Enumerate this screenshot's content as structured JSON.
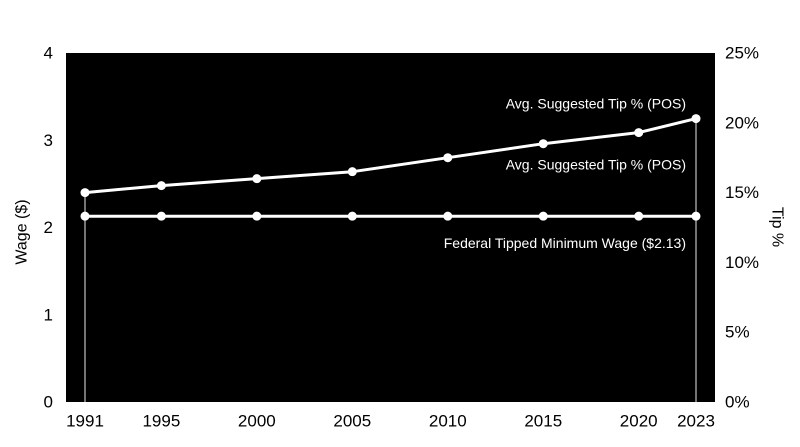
{
  "chart_data": {
    "type": "line",
    "x": [
      1991,
      1995,
      2000,
      2005,
      2010,
      2015,
      2020,
      2023
    ],
    "ylabel": "Wage ($)",
    "ylim": [
      0,
      4
    ],
    "yticks": [
      0,
      1,
      2,
      3,
      4
    ],
    "y2label": "Tip %",
    "y2lim": [
      0,
      25
    ],
    "y2ticks": [
      0,
      5,
      10,
      15,
      20,
      25
    ],
    "y2tick_labels": [
      "0%",
      "5%",
      "10%",
      "15%",
      "20%",
      "25%"
    ],
    "series": [
      {
        "name": "Avg. Suggested Tip % (POS)",
        "axis": "right",
        "values": [
          15,
          15.5,
          16,
          16.5,
          17.5,
          18.5,
          19.3,
          20.3
        ],
        "label_placements": [
          "above-end",
          "below-end"
        ]
      },
      {
        "name": "Federal Tipped Minimum Wage ($2.13)",
        "axis": "left",
        "values": [
          2.13,
          2.13,
          2.13,
          2.13,
          2.13,
          2.13,
          2.13,
          2.13
        ],
        "label_placements": [
          "below-end"
        ]
      }
    ],
    "drop_lines_at": [
      1991,
      2023
    ],
    "grid": false,
    "colors": {
      "plot_background": "#000000",
      "series_line": "#ffffff",
      "drop_line": "#9a9a9a",
      "axis_text": "#000000",
      "label_text": "#ffffff"
    }
  }
}
